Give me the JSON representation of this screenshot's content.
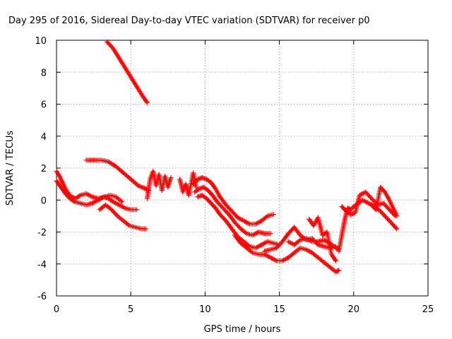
{
  "chart_data": {
    "type": "scatter",
    "title": "Day 295 of 2016, Sidereal Day-to-day VTEC variation (SDTVAR) for receiver p0",
    "xlabel": "GPS time / hours",
    "ylabel": "SDTVAR / TECUs",
    "xlim": [
      0,
      25
    ],
    "ylim": [
      -6,
      10
    ],
    "xticks": [
      0,
      5,
      10,
      15,
      20,
      25
    ],
    "yticks": [
      -6,
      -4,
      -2,
      0,
      2,
      4,
      6,
      8,
      10
    ],
    "grid": true,
    "marker": "+",
    "color": "#ff0000",
    "series": [
      {
        "name": "s1",
        "x": [
          0.0,
          0.2,
          0.4,
          0.6,
          0.8,
          1.0,
          1.3,
          1.6,
          2.0,
          2.4,
          2.8,
          3.2,
          3.6,
          4.0,
          4.4
        ],
        "y": [
          1.8,
          1.5,
          1.1,
          0.7,
          0.4,
          0.2,
          0.1,
          0.3,
          0.4,
          0.2,
          0.1,
          0.2,
          0.3,
          0.2,
          -0.1
        ]
      },
      {
        "name": "s2",
        "x": [
          0.0,
          0.3,
          0.6,
          0.9,
          1.2,
          1.6,
          2.0,
          2.4,
          2.8,
          3.2,
          3.5,
          3.8,
          4.2,
          4.6,
          5.0,
          5.4
        ],
        "y": [
          1.2,
          0.8,
          0.4,
          0.1,
          -0.1,
          -0.2,
          -0.3,
          -0.2,
          0.0,
          0.2,
          0.1,
          -0.1,
          -0.3,
          -0.5,
          -0.6,
          -0.6
        ]
      },
      {
        "name": "s3",
        "x": [
          2.0,
          2.5,
          3.0,
          3.5,
          4.0,
          4.5,
          5.0,
          5.5,
          6.0,
          6.2
        ],
        "y": [
          2.5,
          2.5,
          2.5,
          2.4,
          2.1,
          1.7,
          1.3,
          0.9,
          0.7,
          0.6
        ]
      },
      {
        "name": "s4",
        "x": [
          3.4,
          3.8,
          4.2,
          4.6,
          5.0,
          5.4,
          5.8,
          6.1
        ],
        "y": [
          9.9,
          9.5,
          8.9,
          8.3,
          7.7,
          7.1,
          6.5,
          6.1
        ]
      },
      {
        "name": "s5",
        "x": [
          2.9,
          3.3,
          3.7,
          4.1,
          4.5,
          4.9,
          5.3,
          5.7,
          6.0
        ],
        "y": [
          -0.6,
          -0.3,
          -0.6,
          -1.0,
          -1.3,
          -1.6,
          -1.7,
          -1.8,
          -1.8
        ]
      },
      {
        "name": "s6",
        "x": [
          6.1,
          6.3,
          6.5,
          6.7,
          6.9,
          7.1,
          7.3,
          7.5,
          7.7
        ],
        "y": [
          0.1,
          1.3,
          1.8,
          0.9,
          1.6,
          0.6,
          1.5,
          0.8,
          1.4
        ]
      },
      {
        "name": "s7",
        "x": [
          8.3,
          8.5,
          8.7,
          8.9,
          9.2,
          9.4
        ],
        "y": [
          1.3,
          0.5,
          1.0,
          0.3,
          1.7,
          0.8
        ]
      },
      {
        "name": "s8",
        "x": [
          9.2,
          9.5,
          9.8,
          10.1,
          10.4,
          10.7,
          11.0,
          11.4,
          11.8,
          12.2,
          12.6,
          13.0,
          13.4,
          13.8,
          14.2,
          14.6
        ],
        "y": [
          1.0,
          1.3,
          1.4,
          1.3,
          1.1,
          0.7,
          0.2,
          -0.3,
          -0.7,
          -1.1,
          -1.3,
          -1.5,
          -1.5,
          -1.3,
          -1.0,
          -0.9
        ]
      },
      {
        "name": "s9",
        "x": [
          9.3,
          9.6,
          9.9,
          10.2,
          10.5,
          10.8,
          11.2,
          11.6,
          12.0,
          12.4,
          12.8,
          13.2,
          13.6,
          14.0,
          14.4
        ],
        "y": [
          0.5,
          0.7,
          0.8,
          0.6,
          0.3,
          -0.1,
          -0.5,
          -0.9,
          -1.4,
          -1.8,
          -2.1,
          -2.2,
          -2.0,
          -2.1,
          -2.1
        ]
      },
      {
        "name": "s10",
        "x": [
          9.5,
          9.8,
          10.1,
          10.4,
          10.7,
          11.0,
          11.4,
          11.8,
          12.2,
          12.6,
          13.0,
          13.4,
          13.8,
          14.2,
          14.6,
          15.0
        ],
        "y": [
          0.2,
          0.3,
          0.1,
          -0.2,
          -0.5,
          -0.9,
          -1.3,
          -1.8,
          -2.3,
          -2.6,
          -2.9,
          -3.0,
          -2.8,
          -2.6,
          -2.7,
          -2.8
        ]
      },
      {
        "name": "s11",
        "x": [
          12.0,
          12.4,
          12.8,
          13.2,
          13.6,
          14.0,
          14.4,
          14.8,
          15.2,
          15.6,
          16.0,
          16.4,
          16.8,
          17.2,
          17.6,
          18.0,
          18.4,
          18.8,
          19.0
        ],
        "y": [
          -2.2,
          -2.7,
          -3.0,
          -3.3,
          -3.4,
          -3.4,
          -3.6,
          -3.8,
          -3.8,
          -3.6,
          -3.3,
          -3.0,
          -3.1,
          -3.3,
          -3.6,
          -3.9,
          -4.2,
          -4.5,
          -4.4
        ]
      },
      {
        "name": "s12",
        "x": [
          14.0,
          14.4,
          14.8,
          15.2,
          15.6,
          16.0,
          16.4,
          16.8,
          17.2,
          17.6,
          18.0,
          18.4,
          18.8
        ],
        "y": [
          -3.2,
          -3.1,
          -3.0,
          -2.6,
          -2.1,
          -1.7,
          -2.2,
          -2.5,
          -2.4,
          -2.8,
          -2.9,
          -3.0,
          -2.9
        ]
      },
      {
        "name": "s13",
        "x": [
          15.6,
          16.0,
          16.4,
          16.8,
          17.2,
          17.6,
          18.0,
          18.4,
          18.8,
          19.0
        ],
        "y": [
          -2.6,
          -2.8,
          -2.5,
          -2.4,
          -2.6,
          -2.6,
          -2.5,
          -2.7,
          -3.0,
          -3.1
        ]
      },
      {
        "name": "s14",
        "x": [
          17.0,
          17.3,
          17.6,
          17.9,
          18.2,
          18.5,
          18.8
        ],
        "y": [
          -1.2,
          -1.6,
          -1.1,
          -2.2,
          -2.0,
          -3.4,
          -3.8
        ]
      },
      {
        "name": "s15",
        "x": [
          19.0,
          19.2,
          19.4,
          19.6,
          19.8,
          20.0,
          20.3,
          20.6,
          21.0,
          21.4,
          21.8,
          22.2,
          22.6,
          22.9
        ],
        "y": [
          -3.2,
          -2.2,
          -1.2,
          -0.5,
          -0.6,
          -0.4,
          -0.2,
          0.0,
          -0.2,
          -0.4,
          -0.7,
          -1.1,
          -1.5,
          -1.8
        ]
      },
      {
        "name": "s16",
        "x": [
          19.2,
          19.5,
          19.8,
          20.1,
          20.4,
          20.8,
          21.2,
          21.6,
          22.0,
          22.4,
          22.8
        ],
        "y": [
          -0.4,
          -0.7,
          -0.9,
          -0.8,
          0.3,
          0.5,
          0.1,
          -0.3,
          -0.2,
          -0.6,
          -1.0
        ]
      },
      {
        "name": "s17",
        "x": [
          21.2,
          21.5,
          21.8,
          22.1,
          22.4,
          22.7,
          22.9
        ],
        "y": [
          -0.3,
          -0.6,
          0.8,
          0.5,
          0.0,
          -0.6,
          -1.0
        ]
      }
    ]
  }
}
